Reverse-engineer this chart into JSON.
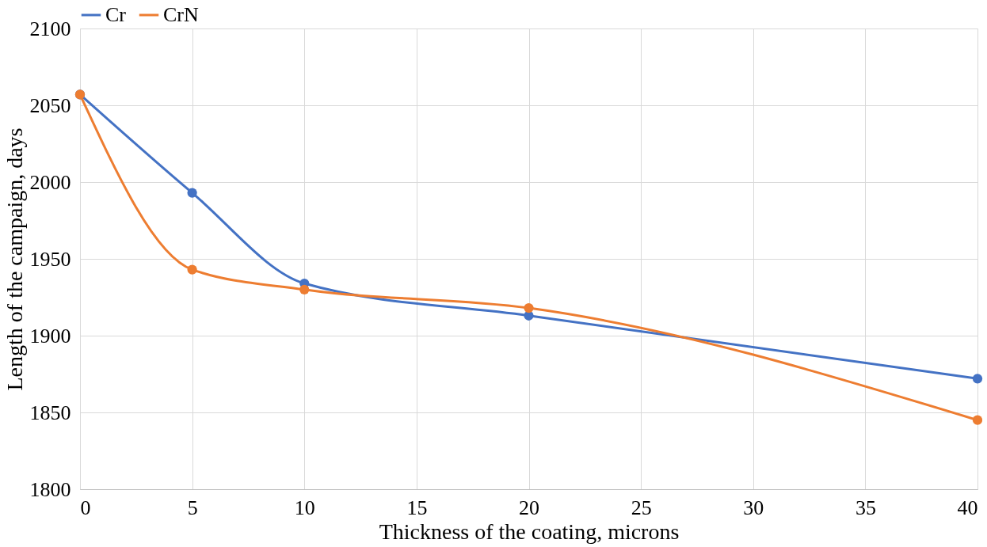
{
  "chart_data": {
    "type": "line",
    "xlabel": "Thickness of the coating, microns",
    "ylabel": "Length of the campaign,  days",
    "x": [
      0,
      5,
      10,
      20,
      40
    ],
    "series": [
      {
        "name": "Cr",
        "color": "#4472c4",
        "values": [
          2057,
          1993,
          1934,
          1913,
          1872
        ]
      },
      {
        "name": "CrN",
        "color": "#ed7d31",
        "values": [
          2057,
          1943,
          1930,
          1918,
          1845
        ]
      }
    ],
    "xlim": [
      0,
      40
    ],
    "xticks": [
      0,
      5,
      10,
      15,
      20,
      25,
      30,
      35,
      40
    ],
    "ylim": [
      1800,
      2100
    ],
    "yticks": [
      1800,
      1850,
      1900,
      1950,
      2000,
      2050,
      2100
    ],
    "grid": true,
    "legend": "top",
    "marker": "circle",
    "line_style": "solid"
  }
}
